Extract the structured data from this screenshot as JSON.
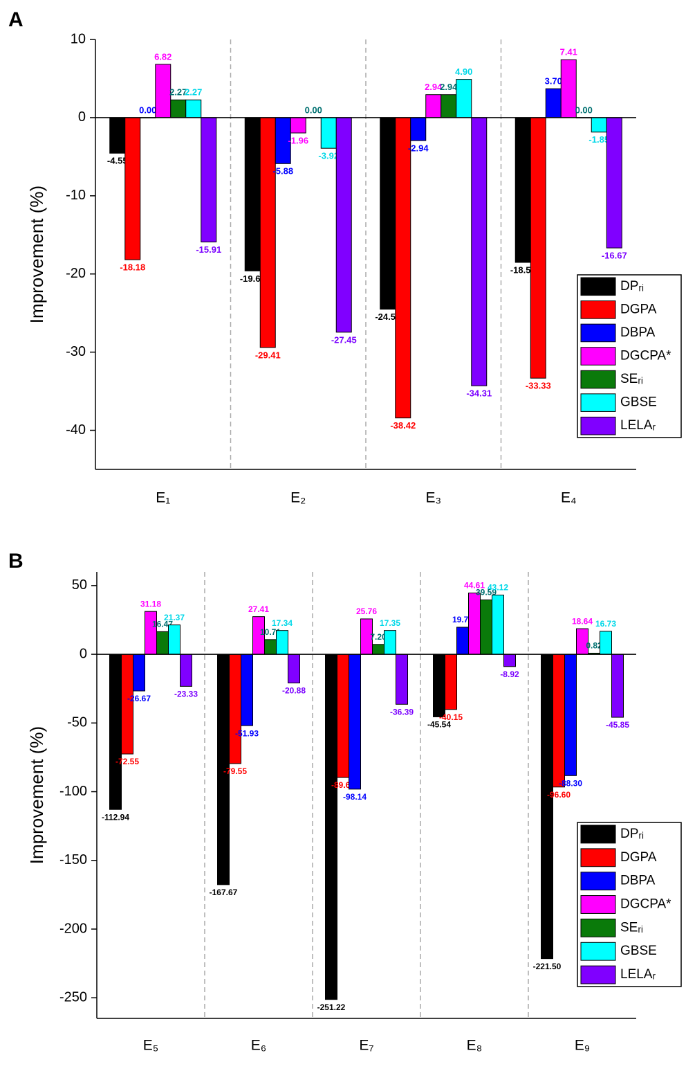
{
  "chart_data": [
    {
      "type": "bar",
      "panel": "A",
      "ylabel": "Improvement (%)",
      "categories": [
        "E₁",
        "E₂",
        "E₃",
        "E₄"
      ],
      "ylim": [
        -45,
        10
      ],
      "yticks": [
        -40,
        -30,
        -20,
        -10,
        0,
        10
      ],
      "legend": "lower right",
      "series": [
        {
          "name": "DPᵣᵢ",
          "color": "#000000",
          "label_color": "#000000",
          "values": [
            -4.55,
            -19.61,
            -24.51,
            -18.52
          ],
          "value_labels": [
            "-4.55",
            "-19.61",
            "-24.51",
            "-18.52"
          ]
        },
        {
          "name": "DGPA",
          "color": "#ff0000",
          "label_color": "#ff0000",
          "values": [
            -18.18,
            -29.41,
            -38.42,
            -33.33
          ],
          "value_labels": [
            "-18.18",
            "-29.41",
            "-38.42",
            "-33.33"
          ]
        },
        {
          "name": "DBPA",
          "color": "#0000ff",
          "label_color": "#0000ff",
          "values": [
            0,
            -5.88,
            -2.94,
            3.7
          ],
          "value_labels": [
            "0.00",
            "-5.88",
            "-2.94",
            "3.70"
          ]
        },
        {
          "name": "DGCPA*",
          "color": "#ff00ff",
          "label_color": "#ff00ff",
          "values": [
            6.82,
            -1.96,
            2.94,
            7.41
          ],
          "value_labels": [
            "6.82",
            "-1.96",
            "2.94",
            "7.41"
          ]
        },
        {
          "name": "SEᵣᵢ",
          "color": "#0a7a0a",
          "label_color": "#007070",
          "values": [
            2.27,
            0,
            2.94,
            0
          ],
          "value_labels": [
            "2.27",
            "0.00",
            "2.94",
            "0.00"
          ]
        },
        {
          "name": "GBSE",
          "color": "#00ffff",
          "label_color": "#00d8e8",
          "values": [
            2.27,
            -3.92,
            4.9,
            -1.85
          ],
          "value_labels": [
            "2.27",
            "-3.92",
            "4.90",
            "-1.85"
          ]
        },
        {
          "name": "LELAᵣ",
          "color": "#8000ff",
          "label_color": "#7a00ff",
          "values": [
            -15.91,
            -27.45,
            -34.31,
            -16.67
          ],
          "value_labels": [
            "-15.91",
            "-27.45",
            "-34.31",
            "-16.67"
          ]
        }
      ]
    },
    {
      "type": "bar",
      "panel": "B",
      "ylabel": "Improvement (%)",
      "categories": [
        "E₅",
        "E₆",
        "E₇",
        "E₈",
        "E₉"
      ],
      "ylim": [
        -265,
        60
      ],
      "yticks": [
        -250,
        -200,
        -150,
        -100,
        -50,
        0,
        50
      ],
      "legend": "lower right",
      "series": [
        {
          "name": "DPᵣᵢ",
          "color": "#000000",
          "label_color": "#000000",
          "values": [
            -112.94,
            -167.67,
            -251.22,
            -45.54,
            -221.5
          ],
          "value_labels": [
            "-112.94",
            "-167.67",
            "-251.22",
            "-45.54",
            "-221.50"
          ]
        },
        {
          "name": "DGPA",
          "color": "#ff0000",
          "label_color": "#ff0000",
          "values": [
            -72.55,
            -79.55,
            -89.66,
            -40.15,
            -96.6
          ],
          "value_labels": [
            "-72.55",
            "-79.55",
            "-89.66",
            "-40.15",
            "-96.60"
          ]
        },
        {
          "name": "DBPA",
          "color": "#0000ff",
          "label_color": "#0000ff",
          "values": [
            -26.67,
            -51.93,
            -98.14,
            19.7,
            -88.3
          ],
          "value_labels": [
            "-26.67",
            "-51.93",
            "-98.14",
            "19.70",
            "-88.30"
          ]
        },
        {
          "name": "DGCPA*",
          "color": "#ff00ff",
          "label_color": "#ff00ff",
          "values": [
            31.18,
            27.41,
            25.76,
            44.61,
            18.64
          ],
          "value_labels": [
            "31.18",
            "27.41",
            "25.76",
            "44.61",
            "18.64"
          ]
        },
        {
          "name": "SEᵣᵢ",
          "color": "#0a7a0a",
          "label_color": "#007070",
          "values": [
            16.47,
            10.71,
            7.2,
            39.59,
            0.82
          ],
          "value_labels": [
            "16.47",
            "10.71",
            "7.20",
            "39.59",
            "0.82"
          ]
        },
        {
          "name": "GBSE",
          "color": "#00ffff",
          "label_color": "#00d8e8",
          "values": [
            21.37,
            17.34,
            17.35,
            43.12,
            16.73
          ],
          "value_labels": [
            "21.37",
            "17.34",
            "17.35",
            "43.12",
            "16.73"
          ]
        },
        {
          "name": "LELAᵣ",
          "color": "#8000ff",
          "label_color": "#7a00ff",
          "values": [
            -23.33,
            -20.88,
            -36.39,
            -8.92,
            -45.85
          ],
          "value_labels": [
            "-23.33",
            "-20.88",
            "-36.39",
            "-8.92",
            "-45.85"
          ]
        }
      ]
    }
  ]
}
